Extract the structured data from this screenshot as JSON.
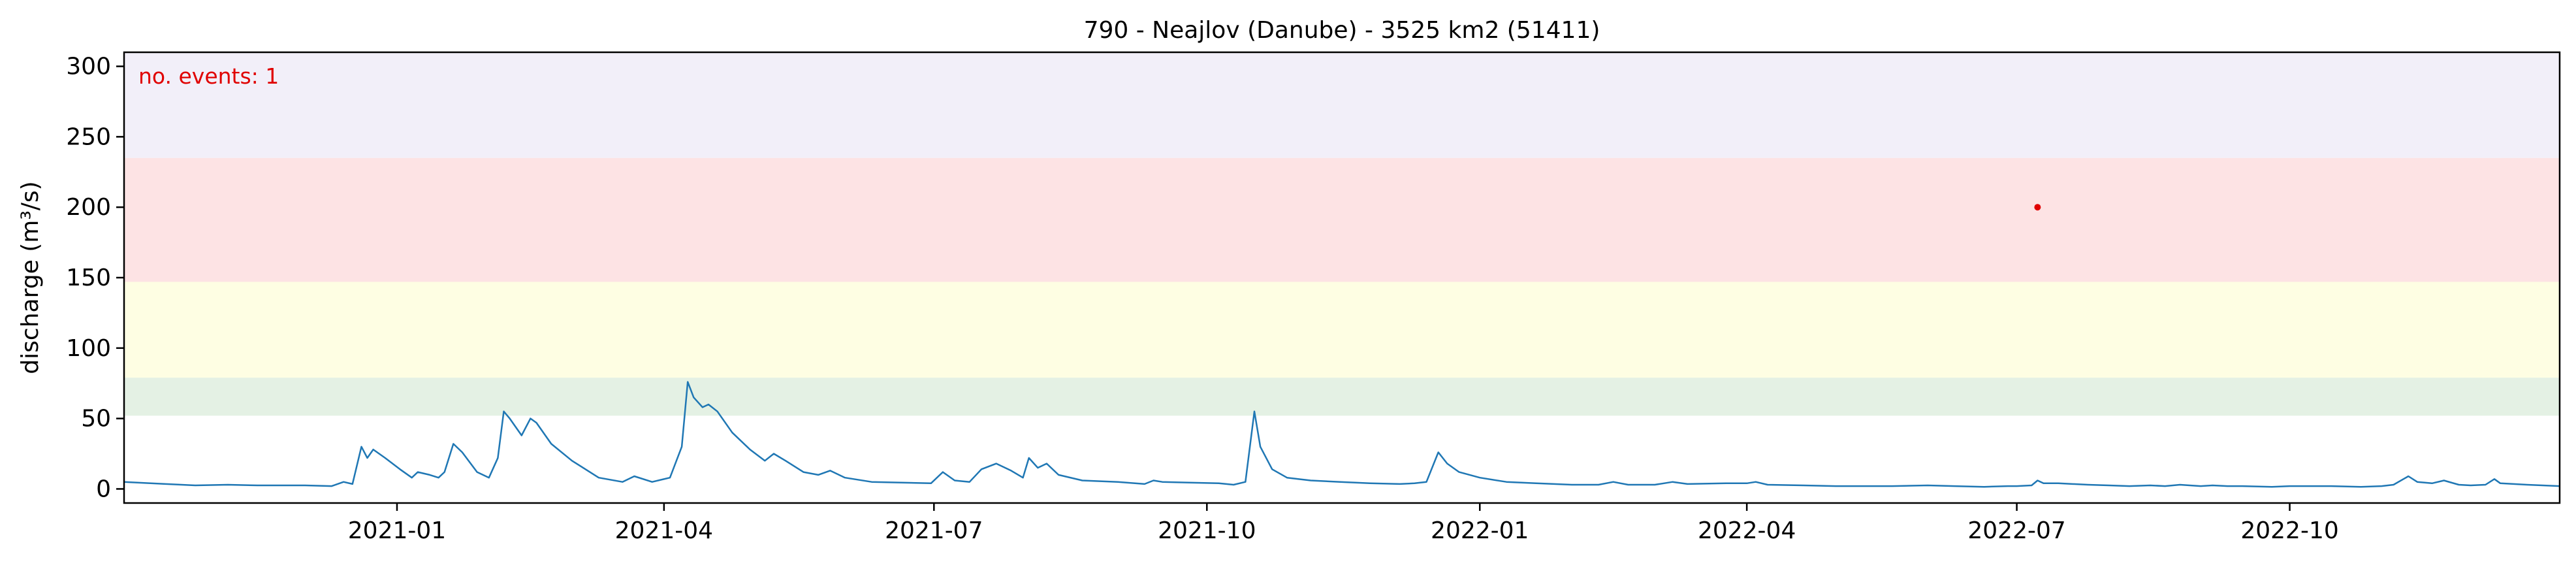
{
  "chart_data": {
    "type": "line",
    "title": "790 - Neajlov (Danube) - 3525 km2 (51411)",
    "xlabel": "",
    "ylabel": "discharge (m³/s)",
    "xlim": [
      "2020-10-01",
      "2022-12-31"
    ],
    "ylim": [
      -10,
      310
    ],
    "yticks": [
      0,
      50,
      100,
      150,
      200,
      250,
      300
    ],
    "xticks": [
      {
        "date": "2021-01-01",
        "label": "2021-01"
      },
      {
        "date": "2021-04-01",
        "label": "2021-04"
      },
      {
        "date": "2021-07-01",
        "label": "2021-07"
      },
      {
        "date": "2021-10-01",
        "label": "2021-10"
      },
      {
        "date": "2022-01-01",
        "label": "2022-01"
      },
      {
        "date": "2022-04-01",
        "label": "2022-04"
      },
      {
        "date": "2022-07-01",
        "label": "2022-07"
      },
      {
        "date": "2022-10-01",
        "label": "2022-10"
      }
    ],
    "bands": [
      {
        "from": 52,
        "to": 79,
        "color": "#e4f1e4"
      },
      {
        "from": 79,
        "to": 147,
        "color": "#fefee3"
      },
      {
        "from": 147,
        "to": 235,
        "color": "#fde3e4"
      },
      {
        "from": 235,
        "to": 310,
        "color": "#f2eff9"
      }
    ],
    "annotation": {
      "text": "no. events: 1",
      "color": "#e00000"
    },
    "events": [
      {
        "x": "2022-07-08",
        "y": 200
      }
    ],
    "series": [
      {
        "color": "#1f77b4",
        "points": [
          [
            "2020-10-01",
            5
          ],
          [
            "2020-10-15",
            3.5
          ],
          [
            "2020-10-25",
            2.5
          ],
          [
            "2020-11-05",
            3
          ],
          [
            "2020-11-15",
            2.5
          ],
          [
            "2020-12-01",
            2.5
          ],
          [
            "2020-12-10",
            2
          ],
          [
            "2020-12-14",
            5
          ],
          [
            "2020-12-17",
            3.5
          ],
          [
            "2020-12-20",
            30
          ],
          [
            "2020-12-22",
            22
          ],
          [
            "2020-12-24",
            28
          ],
          [
            "2020-12-28",
            22
          ],
          [
            "2021-01-02",
            14
          ],
          [
            "2021-01-06",
            8
          ],
          [
            "2021-01-08",
            12
          ],
          [
            "2021-01-12",
            10
          ],
          [
            "2021-01-15",
            8
          ],
          [
            "2021-01-17",
            12
          ],
          [
            "2021-01-20",
            32
          ],
          [
            "2021-01-23",
            26
          ],
          [
            "2021-01-28",
            12
          ],
          [
            "2021-02-01",
            8
          ],
          [
            "2021-02-04",
            22
          ],
          [
            "2021-02-06",
            55
          ],
          [
            "2021-02-08",
            50
          ],
          [
            "2021-02-12",
            38
          ],
          [
            "2021-02-15",
            50
          ],
          [
            "2021-02-17",
            47
          ],
          [
            "2021-02-22",
            32
          ],
          [
            "2021-03-01",
            20
          ],
          [
            "2021-03-10",
            8
          ],
          [
            "2021-03-18",
            5
          ],
          [
            "2021-03-22",
            9
          ],
          [
            "2021-03-28",
            5
          ],
          [
            "2021-04-03",
            8
          ],
          [
            "2021-04-07",
            30
          ],
          [
            "2021-04-09",
            76
          ],
          [
            "2021-04-11",
            65
          ],
          [
            "2021-04-14",
            58
          ],
          [
            "2021-04-16",
            60
          ],
          [
            "2021-04-19",
            55
          ],
          [
            "2021-04-24",
            40
          ],
          [
            "2021-04-30",
            28
          ],
          [
            "2021-05-05",
            20
          ],
          [
            "2021-05-08",
            25
          ],
          [
            "2021-05-12",
            20
          ],
          [
            "2021-05-18",
            12
          ],
          [
            "2021-05-23",
            10
          ],
          [
            "2021-05-27",
            13
          ],
          [
            "2021-06-01",
            8
          ],
          [
            "2021-06-10",
            5
          ],
          [
            "2021-06-20",
            4.5
          ],
          [
            "2021-06-30",
            4
          ],
          [
            "2021-07-04",
            12
          ],
          [
            "2021-07-08",
            6
          ],
          [
            "2021-07-13",
            5
          ],
          [
            "2021-07-17",
            14
          ],
          [
            "2021-07-22",
            18
          ],
          [
            "2021-07-27",
            13
          ],
          [
            "2021-07-31",
            8
          ],
          [
            "2021-08-02",
            22
          ],
          [
            "2021-08-05",
            15
          ],
          [
            "2021-08-08",
            18
          ],
          [
            "2021-08-12",
            10
          ],
          [
            "2021-08-20",
            6
          ],
          [
            "2021-09-01",
            5
          ],
          [
            "2021-09-10",
            3.5
          ],
          [
            "2021-09-13",
            6
          ],
          [
            "2021-09-16",
            5
          ],
          [
            "2021-09-25",
            4.5
          ],
          [
            "2021-10-05",
            4
          ],
          [
            "2021-10-10",
            3
          ],
          [
            "2021-10-14",
            5
          ],
          [
            "2021-10-17",
            55
          ],
          [
            "2021-10-19",
            30
          ],
          [
            "2021-10-23",
            14
          ],
          [
            "2021-10-28",
            8
          ],
          [
            "2021-11-05",
            6
          ],
          [
            "2021-11-15",
            5
          ],
          [
            "2021-11-25",
            4
          ],
          [
            "2021-12-05",
            3.5
          ],
          [
            "2021-12-10",
            4
          ],
          [
            "2021-12-14",
            5
          ],
          [
            "2021-12-18",
            26
          ],
          [
            "2021-12-21",
            18
          ],
          [
            "2021-12-25",
            12
          ],
          [
            "2022-01-01",
            8
          ],
          [
            "2022-01-10",
            5
          ],
          [
            "2022-01-20",
            4
          ],
          [
            "2022-02-01",
            3
          ],
          [
            "2022-02-10",
            3
          ],
          [
            "2022-02-15",
            5
          ],
          [
            "2022-02-20",
            3
          ],
          [
            "2022-03-01",
            3
          ],
          [
            "2022-03-07",
            5
          ],
          [
            "2022-03-12",
            3.5
          ],
          [
            "2022-03-25",
            4
          ],
          [
            "2022-04-01",
            4
          ],
          [
            "2022-04-04",
            5
          ],
          [
            "2022-04-08",
            3
          ],
          [
            "2022-04-20",
            2.5
          ],
          [
            "2022-05-01",
            2
          ],
          [
            "2022-05-10",
            2
          ],
          [
            "2022-05-20",
            2
          ],
          [
            "2022-06-01",
            2.5
          ],
          [
            "2022-06-10",
            2
          ],
          [
            "2022-06-20",
            1.5
          ],
          [
            "2022-06-28",
            2
          ],
          [
            "2022-07-01",
            2
          ],
          [
            "2022-07-06",
            2.5
          ],
          [
            "2022-07-08",
            6
          ],
          [
            "2022-07-10",
            4
          ],
          [
            "2022-07-15",
            4
          ],
          [
            "2022-07-25",
            3
          ],
          [
            "2022-08-01",
            2.5
          ],
          [
            "2022-08-08",
            2
          ],
          [
            "2022-08-15",
            2.5
          ],
          [
            "2022-08-20",
            2
          ],
          [
            "2022-08-25",
            3
          ],
          [
            "2022-09-01",
            2
          ],
          [
            "2022-09-05",
            2.5
          ],
          [
            "2022-09-10",
            2
          ],
          [
            "2022-09-15",
            2
          ],
          [
            "2022-09-25",
            1.5
          ],
          [
            "2022-10-01",
            2
          ],
          [
            "2022-10-05",
            2
          ],
          [
            "2022-10-15",
            2
          ],
          [
            "2022-10-25",
            1.5
          ],
          [
            "2022-11-01",
            2
          ],
          [
            "2022-11-05",
            3
          ],
          [
            "2022-11-10",
            9
          ],
          [
            "2022-11-13",
            5
          ],
          [
            "2022-11-18",
            4
          ],
          [
            "2022-11-22",
            6
          ],
          [
            "2022-11-27",
            3
          ],
          [
            "2022-12-01",
            2.5
          ],
          [
            "2022-12-06",
            3
          ],
          [
            "2022-12-09",
            7
          ],
          [
            "2022-12-11",
            4
          ],
          [
            "2022-12-20",
            3
          ],
          [
            "2022-12-31",
            2
          ]
        ]
      }
    ]
  }
}
